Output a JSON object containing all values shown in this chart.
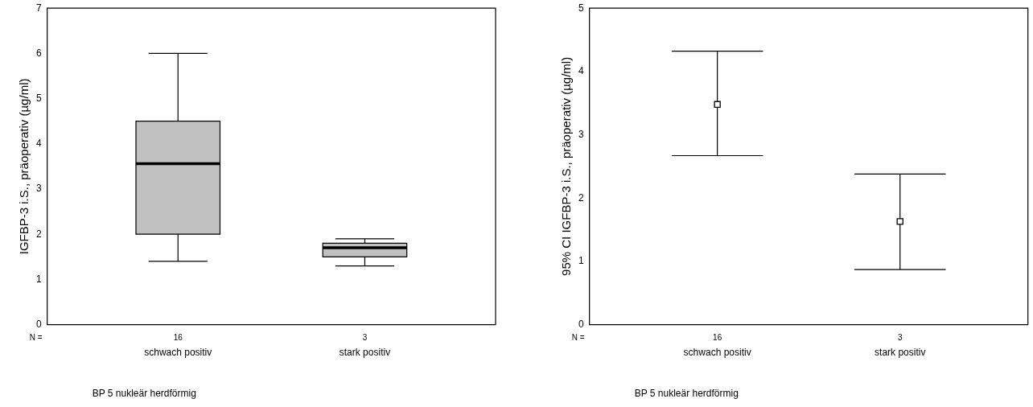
{
  "chart_data": [
    {
      "type": "box",
      "categories": [
        "schwach positiv",
        "stark positiv"
      ],
      "color": "#c0c0c0",
      "boxes": [
        {
          "low": 1.4,
          "q1": 2.0,
          "median": 3.56,
          "q3": 4.5,
          "high": 6.0
        },
        {
          "low": 1.3,
          "q1": 1.5,
          "median": 1.7,
          "q3": 1.8,
          "high": 1.9
        }
      ],
      "ylabel": "IGFBP-3 i.S., präoperativ (µg/ml)",
      "xlabel": "BP 5 nukleär herdförmig",
      "ylim": [
        0,
        7
      ],
      "yticks": [
        0,
        1,
        2,
        3,
        4,
        5,
        6,
        7
      ],
      "annotations": [
        "N =",
        "16",
        "3"
      ]
    },
    {
      "type": "scatter",
      "categories": [
        "schwach positiv",
        "stark positiv"
      ],
      "values": [
        3.48,
        1.63
      ],
      "color": "#000000",
      "errors": [
        [
          2.67,
          4.32
        ],
        [
          0.87,
          2.38
        ]
      ],
      "marker": "square",
      "ylabel": "95% CI IGFBP-3 i.S., präoperativ (µg/ml)",
      "xlabel": "BP 5 nukleär herdförmig",
      "ylim": [
        0,
        5
      ],
      "yticks": [
        0,
        1,
        2,
        3,
        4,
        5
      ],
      "annotations": [
        "N =",
        "16",
        "3"
      ]
    }
  ]
}
